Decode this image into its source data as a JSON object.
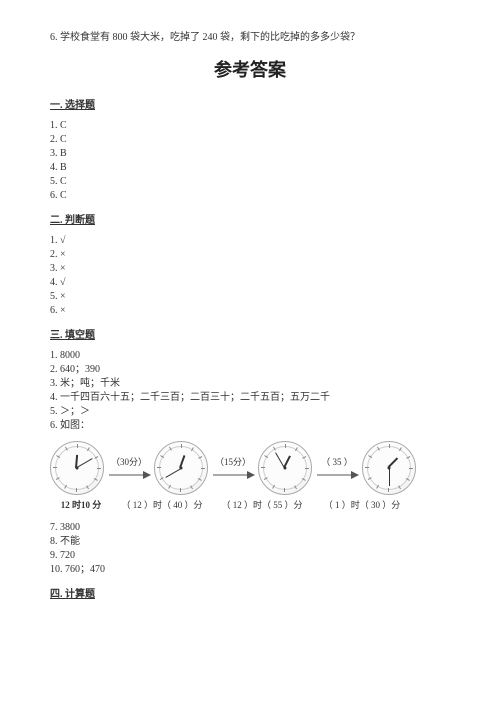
{
  "question6": "6. 学校食堂有 800 袋大米，吃掉了 240 袋，剩下的比吃掉的多多少袋？",
  "mainTitle": "参考答案",
  "sections": {
    "s1": {
      "heading": "一. 选择题",
      "items": [
        "1. C",
        "2. C",
        "3. B",
        "4. B",
        "5. C",
        "6. C"
      ]
    },
    "s2": {
      "heading": "二. 判断题",
      "items": [
        "1. √",
        "2. ×",
        "3. ×",
        "4. √",
        "5. ×",
        "6. ×"
      ]
    },
    "s3": {
      "heading": "三. 填空题",
      "items": [
        "1. 8000",
        "2. 640；390",
        "3. 米；吨；千米",
        "4. 一千四百六十五；二千三百；二百三十；二千五百；五万二千",
        "5. ＞；＞",
        "6. 如图："
      ],
      "itemsAfter": [
        "7. 3800",
        "8. 不能",
        "9. 720",
        "10. 760；470"
      ]
    },
    "s4": {
      "heading": "四. 计算题"
    }
  },
  "clocks": {
    "arrows": [
      "（30分）",
      "（15分）",
      "（ 35 ）"
    ],
    "timeLabels": [
      "12 时10 分",
      "（ 12 ）时（ 40 ）分",
      "（ 12 ）时（ 55 ）分",
      "（  1  ）时（ 30 ）分"
    ],
    "hands": [
      {
        "hourDeg": 5,
        "minDeg": 60
      },
      {
        "hourDeg": 20,
        "minDeg": 240
      },
      {
        "hourDeg": 27,
        "minDeg": 330
      },
      {
        "hourDeg": 45,
        "minDeg": 180
      }
    ]
  },
  "style": {
    "textColor": "#333333",
    "background": "#ffffff",
    "clockBorder": "#aaaaaa",
    "bodyFontSize": 10,
    "titleFontSize": 18
  }
}
